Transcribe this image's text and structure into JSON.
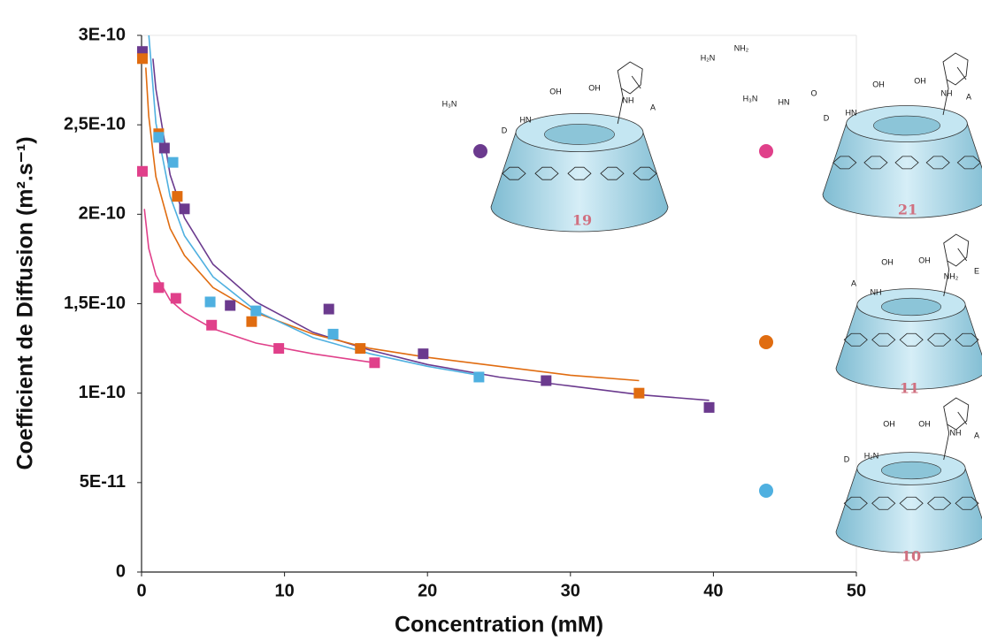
{
  "chart_data": {
    "type": "scatter",
    "xlabel": "Concentration (mM)",
    "ylabel": "Coefficient de Diffusion (m².s⁻¹)",
    "xlim": [
      0,
      50
    ],
    "xticks": [
      0,
      10,
      20,
      30,
      40,
      50
    ],
    "ylim": [
      0,
      3e-10
    ],
    "yticks": [
      {
        "value": 0,
        "label": "0"
      },
      {
        "value": 5e-11,
        "label": "5E-11"
      },
      {
        "value": 1e-10,
        "label": "1E-10"
      },
      {
        "value": 1.5e-10,
        "label": "1,5E-10"
      },
      {
        "value": 2e-10,
        "label": "2E-10"
      },
      {
        "value": 2.5e-10,
        "label": "2,5E-10"
      },
      {
        "value": 3e-10,
        "label": "3E-10"
      }
    ],
    "series": [
      {
        "name": "19",
        "color": "#6b3a8e",
        "x": [
          0.06,
          1.6,
          3.0,
          6.2,
          13.1,
          19.7,
          28.3,
          39.7
        ],
        "values": [
          2.91e-10,
          2.37e-10,
          2.03e-10,
          1.49e-10,
          1.47e-10,
          1.22e-10,
          1.07e-10,
          9.2e-11
        ],
        "fit": {
          "x": [
            0.8,
            1,
            2,
            3,
            5,
            8,
            12,
            16,
            20,
            25,
            30,
            35,
            39.7
          ],
          "values": [
            2.87e-10,
            2.7e-10,
            2.22e-10,
            1.98e-10,
            1.72e-10,
            1.51e-10,
            1.34e-10,
            1.24e-10,
            1.16e-10,
            1.09e-10,
            1.04e-10,
            9.9e-11,
            9.6e-11
          ]
        },
        "labels": [
          "H₃N",
          "OH",
          "OH",
          "NH",
          "A",
          "D",
          "HN"
        ]
      },
      {
        "name": "21",
        "color": "#e0408a",
        "x": [
          0.06,
          1.2,
          2.4,
          4.9,
          9.6,
          16.3
        ],
        "values": [
          2.24e-10,
          1.59e-10,
          1.53e-10,
          1.38e-10,
          1.25e-10,
          1.17e-10
        ],
        "fit": {
          "x": [
            0.2,
            0.5,
            1,
            2,
            3,
            5,
            8,
            12,
            16.3
          ],
          "values": [
            2.03e-10,
            1.81e-10,
            1.66e-10,
            1.52e-10,
            1.45e-10,
            1.36e-10,
            1.28e-10,
            1.22e-10,
            1.17e-10
          ]
        },
        "labels": [
          "NH₂",
          "H₂N",
          "H₃N",
          "HN",
          "O",
          "OH",
          "OH",
          "NH",
          "A",
          "D",
          "HN"
        ]
      },
      {
        "name": "11",
        "color": "#e06c10",
        "x": [
          0.06,
          1.2,
          2.5,
          7.7,
          15.3,
          34.8
        ],
        "values": [
          2.87e-10,
          2.45e-10,
          2.1e-10,
          1.4e-10,
          1.25e-10,
          1e-10
        ],
        "fit": {
          "x": [
            0.3,
            0.5,
            1,
            2,
            3,
            5,
            8,
            12,
            16,
            20,
            25,
            30,
            34.8
          ],
          "values": [
            2.82e-10,
            2.55e-10,
            2.21e-10,
            1.92e-10,
            1.77e-10,
            1.59e-10,
            1.45e-10,
            1.33e-10,
            1.25e-10,
            1.2e-10,
            1.15e-10,
            1.1e-10,
            1.07e-10
          ]
        },
        "labels": [
          "OH",
          "OH",
          "NH₂",
          "E",
          "A",
          "NH"
        ]
      },
      {
        "name": "10",
        "color": "#4fb0e0",
        "x": [
          1.2,
          2.2,
          4.8,
          8.0,
          13.4,
          23.6
        ],
        "values": [
          2.43e-10,
          2.29e-10,
          1.51e-10,
          1.46e-10,
          1.33e-10,
          1.09e-10
        ],
        "fit": {
          "x": [
            0.5,
            1,
            2,
            3,
            5,
            8,
            12,
            16,
            20,
            23.6
          ],
          "values": [
            3.01e-10,
            2.51e-10,
            2.1e-10,
            1.88e-10,
            1.65e-10,
            1.46e-10,
            1.31e-10,
            1.22e-10,
            1.15e-10,
            1.1e-10
          ]
        },
        "labels": [
          "OH",
          "OH",
          "NH",
          "A",
          "H₂N",
          "D"
        ]
      }
    ]
  }
}
